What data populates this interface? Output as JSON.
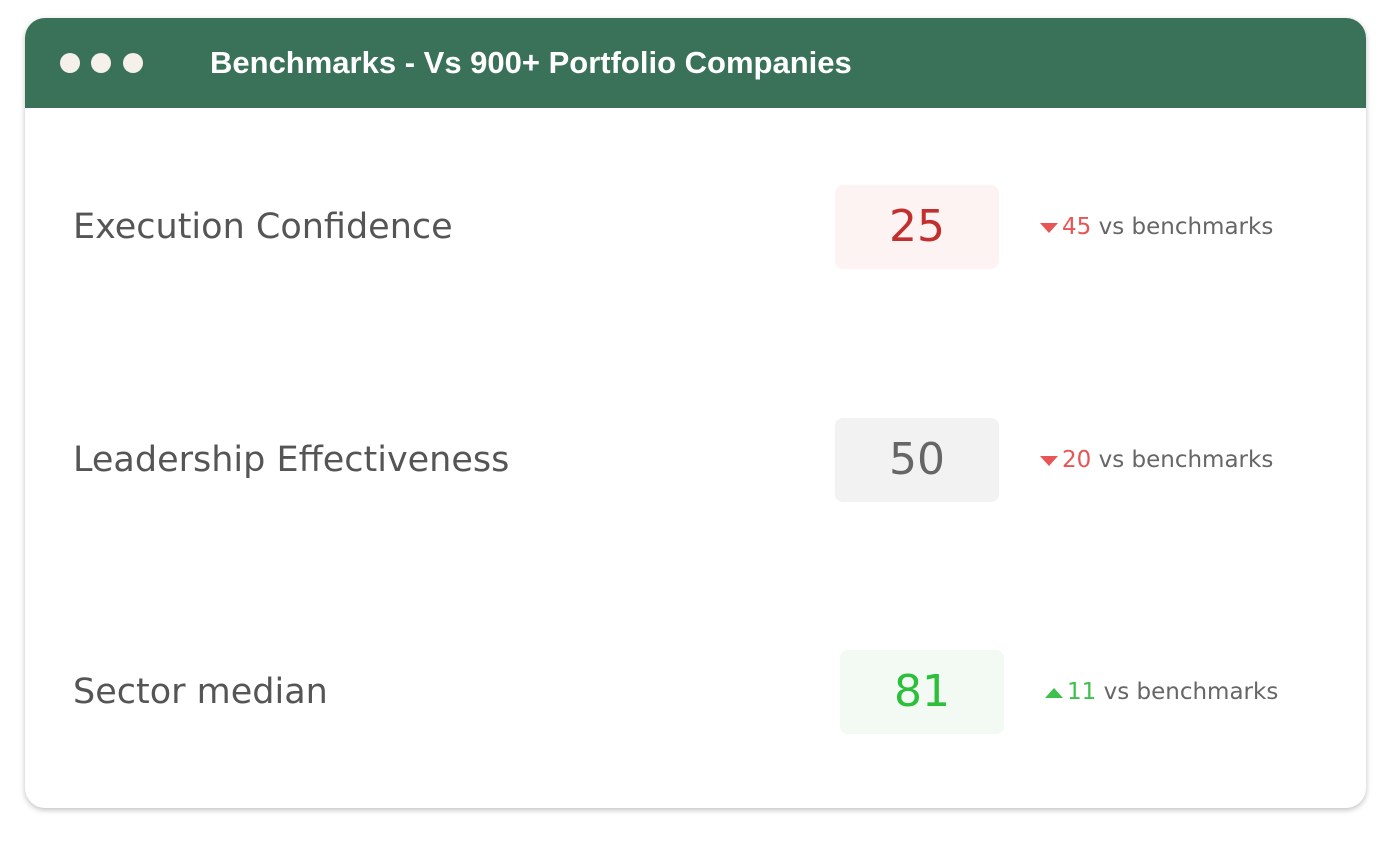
{
  "header": {
    "title": "Benchmarks - Vs 900+ Portfolio Companies"
  },
  "rows": [
    {
      "label": "Execution Confidence",
      "score": "25",
      "score_style": "bad",
      "direction": "down",
      "delta": "45",
      "note": "vs benchmarks"
    },
    {
      "label": "Leadership Effectiveness",
      "score": "50",
      "score_style": "neutral",
      "direction": "down",
      "delta": "20",
      "note": "vs benchmarks"
    },
    {
      "label": "Sector median",
      "score": "81",
      "score_style": "good",
      "direction": "up",
      "delta": "11",
      "note": "vs benchmarks"
    }
  ]
}
